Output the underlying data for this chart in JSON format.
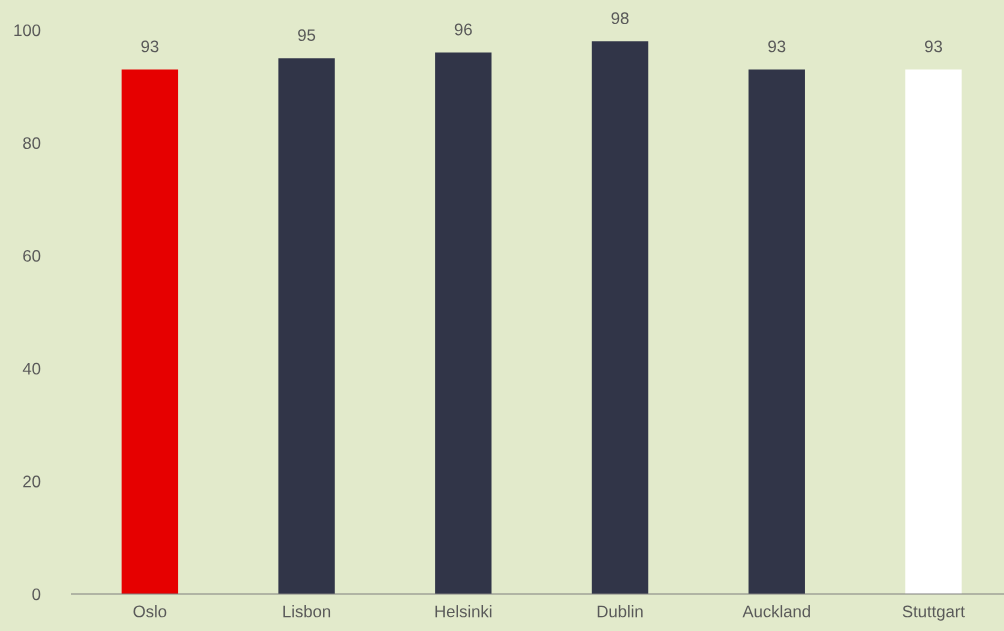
{
  "chart_data": {
    "type": "bar",
    "categories": [
      "Oslo",
      "Lisbon",
      "Helsinki",
      "Dublin",
      "Auckland",
      "Stuttgart"
    ],
    "values": [
      93,
      95,
      96,
      98,
      93,
      93
    ],
    "colors": [
      "#e60000",
      "#313548",
      "#313548",
      "#313548",
      "#313548",
      "#ffffff"
    ],
    "ylim": [
      0,
      100
    ],
    "yticks": [
      0,
      20,
      40,
      60,
      80,
      100
    ],
    "data_labels": true,
    "grid": false,
    "legend": false
  }
}
